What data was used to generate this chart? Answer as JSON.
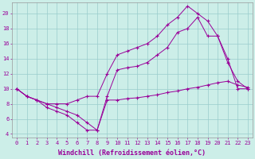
{
  "xlabel": "Windchill (Refroidissement éolien,°C)",
  "bg_color": "#cceee8",
  "line_color": "#990099",
  "grid_color": "#99cccc",
  "xlim": [
    -0.5,
    23.5
  ],
  "ylim": [
    3.5,
    21.5
  ],
  "yticks": [
    4,
    6,
    8,
    10,
    12,
    14,
    16,
    18,
    20
  ],
  "xticks": [
    0,
    1,
    2,
    3,
    4,
    5,
    6,
    7,
    8,
    9,
    10,
    11,
    12,
    13,
    14,
    15,
    16,
    17,
    18,
    19,
    20,
    21,
    22,
    23
  ],
  "line_low": {
    "x": [
      0,
      1,
      2,
      3,
      4,
      5,
      6,
      7,
      8,
      9,
      10,
      11,
      12,
      13,
      14,
      15,
      16,
      17,
      18,
      19,
      20,
      21,
      22,
      23
    ],
    "y": [
      10,
      9,
      8.5,
      7.5,
      7,
      6.5,
      5.5,
      4.5,
      4.5,
      8.5,
      8.5,
      8.7,
      8.8,
      9.0,
      9.2,
      9.5,
      9.7,
      10.0,
      10.2,
      10.5,
      10.8,
      11.0,
      10.5,
      10.2
    ]
  },
  "line_mid": {
    "x": [
      0,
      1,
      2,
      3,
      4,
      5,
      6,
      7,
      8,
      9,
      10,
      11,
      12,
      13,
      14,
      15,
      16,
      17,
      18,
      19,
      20,
      21,
      22,
      23
    ],
    "y": [
      10,
      9,
      8.5,
      8.0,
      7.5,
      7.0,
      6.5,
      5.5,
      4.5,
      9.0,
      12.5,
      12.8,
      13.0,
      13.5,
      14.5,
      15.5,
      17.5,
      18.0,
      19.5,
      17.0,
      17.0,
      13.5,
      11.0,
      10.0
    ]
  },
  "line_high": {
    "x": [
      0,
      1,
      2,
      3,
      4,
      5,
      6,
      7,
      8,
      9,
      10,
      11,
      12,
      13,
      14,
      15,
      16,
      17,
      18,
      19,
      20,
      21,
      22,
      23
    ],
    "y": [
      10,
      9,
      8.5,
      8.0,
      8.0,
      8.0,
      8.5,
      9.0,
      9.0,
      12.0,
      14.5,
      15.0,
      15.5,
      16.0,
      17.0,
      18.5,
      19.5,
      21.0,
      20.0,
      19.0,
      17.0,
      14.0,
      10.0,
      10.0
    ]
  },
  "label_fontsize": 6,
  "tick_fontsize": 5
}
